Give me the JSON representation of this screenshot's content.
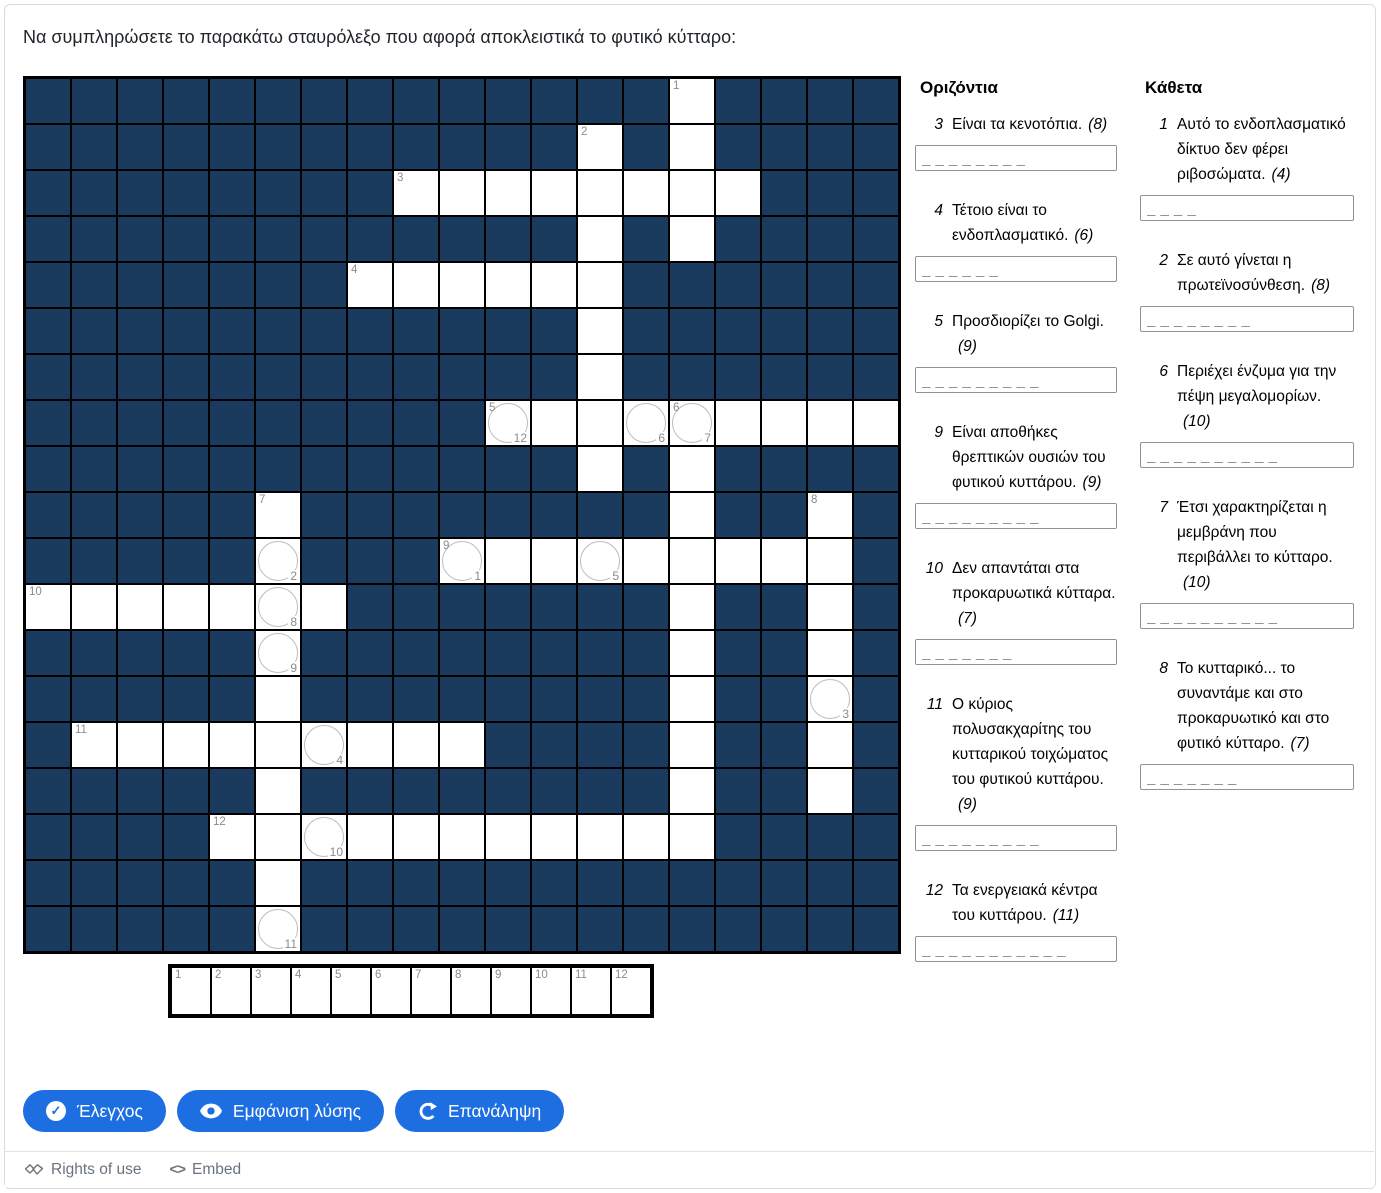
{
  "title": "Να συμπληρώσετε το παρακάτω σταυρόλεξο που αφορά αποκλειστικά το φυτικό κύτταρο:",
  "colors": {
    "dark_cell": "#1a3a5e",
    "button_blue": "#1d6fe1",
    "number_gray": "#8b8b8b",
    "footer_gray": "#6a737d"
  },
  "grid": {
    "rows_count": 19,
    "cols_count": 19,
    "rows": [
      "..............O....",
      "............O.O....",
      "........OOOOOOOO...",
      "............O.O....",
      ".......OOOOOO......",
      "............O......",
      "............O......",
      "..........OOOOOOOOO",
      "............O.O....",
      ".....O........O..O.",
      ".....O...OOOOOOOOO.",
      "OOOOOOO.......O..O.",
      ".....O........O..O.",
      ".....O........O..O.",
      ".OOOOOOOOO....O..O.",
      ".....O........O..O.",
      "....OOOOOOOOOOO....",
      ".....O.............",
      ".....O............."
    ],
    "numbers": {
      "0,14": "1",
      "1,12": "2",
      "2,8": "3",
      "4,7": "4",
      "7,10": "5",
      "7,14": "6",
      "9,5": "7",
      "9,17": "8",
      "10,9": "9",
      "11,0": "10",
      "14,1": "11",
      "16,4": "12"
    },
    "circles": {
      "7,10": "12",
      "7,13": "6",
      "7,14": "7",
      "10,5": "2",
      "10,9": "1",
      "10,12": "5",
      "11,5": "8",
      "12,5": "9",
      "13,17": "3",
      "14,6": "4",
      "16,6": "10",
      "18,5": "11"
    }
  },
  "answer_strip": {
    "numbers": [
      "1",
      "2",
      "3",
      "4",
      "5",
      "6",
      "7",
      "8",
      "9",
      "10",
      "11",
      "12"
    ]
  },
  "across": {
    "header": "Οριζόντια",
    "clues": [
      {
        "num": "3",
        "text": "Είναι τα κενοτόπια.",
        "count": "(8)",
        "placeholder": "_ _ _ _ _ _ _ _"
      },
      {
        "num": "4",
        "text": "Τέτοιο είναι το ενδοπλασματικό.",
        "count": "(6)",
        "placeholder": "_ _ _ _ _ _"
      },
      {
        "num": "5",
        "text": "Προσδιορίζει το Golgi.",
        "count": "(9)",
        "placeholder": "_ _ _ _ _ _ _ _ _"
      },
      {
        "num": "9",
        "text": "Είναι αποθήκες θρεπτικών ουσιών του φυτικού κυττάρου.",
        "count": "(9)",
        "placeholder": "_ _ _ _ _ _ _ _ _"
      },
      {
        "num": "10",
        "text": "Δεν απαντάται στα προκαρυωτικά κύτταρα.",
        "count": "(7)",
        "placeholder": "_ _ _ _ _ _ _"
      },
      {
        "num": "11",
        "text": "Ο κύριος πολυσακχαρίτης του κυτταρικού τοιχώματος του φυτικού κυττάρου.",
        "count": "(9)",
        "placeholder": "_ _ _ _ _ _ _ _ _"
      },
      {
        "num": "12",
        "text": "Τα ενεργειακά κέντρα του κυττάρου.",
        "count": "(11)",
        "placeholder": "_ _ _ _ _ _ _ _ _ _ _"
      }
    ]
  },
  "down": {
    "header": "Κάθετα",
    "clues": [
      {
        "num": "1",
        "text": "Αυτό το ενδοπλασματικό δίκτυο δεν φέρει ριβοσώματα.",
        "count": "(4)",
        "placeholder": "_ _ _ _"
      },
      {
        "num": "2",
        "text": "Σε αυτό γίνεται η πρωτεϊνοσύνθεση.",
        "count": "(8)",
        "placeholder": "_ _ _ _ _ _ _ _"
      },
      {
        "num": "6",
        "text": "Περιέχει ένζυμα για την πέψη μεγαλομορίων.",
        "count": "(10)",
        "placeholder": "_ _ _ _ _ _ _ _ _ _"
      },
      {
        "num": "7",
        "text": "Έτσι χαρακτηρίζεται η μεμβράνη που περιβάλλει το κύτταρο.",
        "count": "(10)",
        "placeholder": "_ _ _ _ _ _ _ _ _ _"
      },
      {
        "num": "8",
        "text": "Το κυτταρικό... το συναντάμε και στο προκαρυωτικό και στο φυτικό κύτταρο.",
        "count": "(7)",
        "placeholder": "_ _ _ _ _ _ _"
      }
    ]
  },
  "buttons": {
    "check": {
      "label": "Έλεγχος",
      "icon": "check-circle-icon"
    },
    "solution": {
      "label": "Εμφάνιση λύσης",
      "icon": "eye-icon"
    },
    "retry": {
      "label": "Επανάληψη",
      "icon": "refresh-icon"
    }
  },
  "footer": {
    "rights_label": "Rights of use",
    "embed_label": "Embed"
  }
}
